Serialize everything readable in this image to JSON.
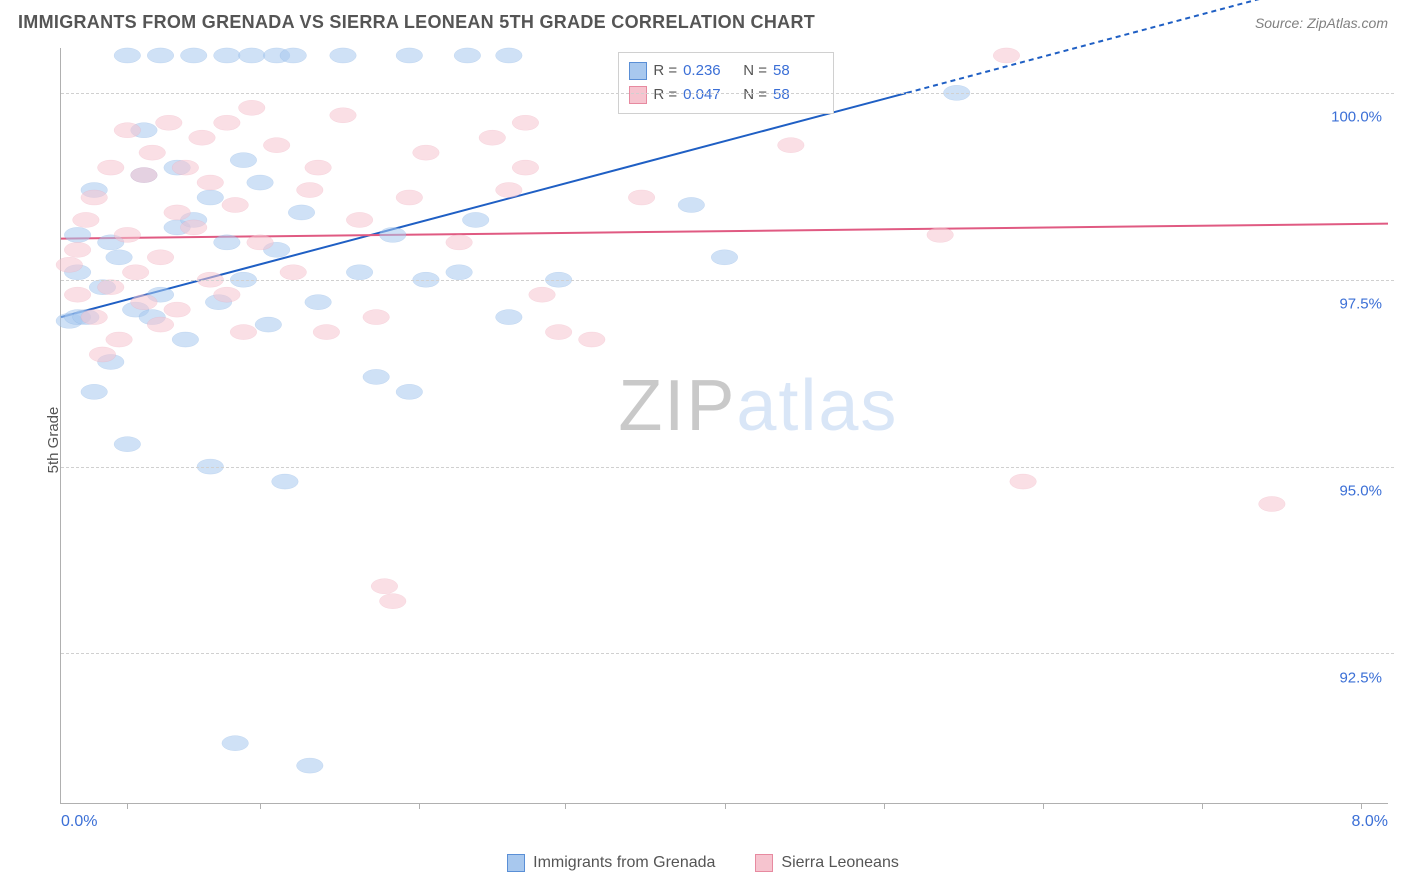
{
  "header": {
    "title": "IMMIGRANTS FROM GRENADA VS SIERRA LEONEAN 5TH GRADE CORRELATION CHART",
    "source_prefix": "Source: ",
    "source_name": "ZipAtlas.com"
  },
  "watermark": {
    "part1": "ZIP",
    "part2": "atlas"
  },
  "legend_stats": {
    "series": [
      {
        "swatch": "#a8c8ee",
        "border": "#5a8fd6",
        "R_label": "R =",
        "R": "0.236",
        "N_label": "N =",
        "N": "58"
      },
      {
        "swatch": "#f6c4cf",
        "border": "#e78aa0",
        "R_label": "R =",
        "R": "0.047",
        "N_label": "N =",
        "N": "58"
      }
    ]
  },
  "bottom_legend": {
    "items": [
      {
        "swatch": "#a8c8ee",
        "border": "#5a8fd6",
        "label": "Immigrants from Grenada"
      },
      {
        "swatch": "#f6c4cf",
        "border": "#e78aa0",
        "label": "Sierra Leoneans"
      }
    ]
  },
  "chart": {
    "type": "scatter",
    "y_axis_label": "5th Grade",
    "xlim": [
      0.0,
      8.0
    ],
    "ylim": [
      90.5,
      100.6
    ],
    "x_range_labels": {
      "min": "0.0%",
      "max": "8.0%"
    },
    "x_ticks_pct": [
      5,
      15,
      27,
      38,
      50,
      62,
      74,
      86,
      98
    ],
    "y_gridlines": [
      {
        "value": 100.0,
        "label": "100.0%"
      },
      {
        "value": 97.5,
        "label": "97.5%"
      },
      {
        "value": 95.0,
        "label": "95.0%"
      },
      {
        "value": 92.5,
        "label": "92.5%"
      }
    ],
    "marker_radius": 9,
    "marker_opacity": 0.55,
    "background_color": "#ffffff",
    "grid_color": "#d0d0d0",
    "series": [
      {
        "name": "Immigrants from Grenada",
        "fill": "#a8c8ee",
        "stroke": "#5a8fd6",
        "line_color": "#1f5fc4",
        "line": {
          "x1": 0.0,
          "y1": 97.0,
          "x2": 5.1,
          "y2": 100.0,
          "dash_after_x": 5.1,
          "dash_x2": 7.3,
          "dash_y2": 101.3
        },
        "points": [
          [
            0.05,
            96.95
          ],
          [
            0.1,
            97.0
          ],
          [
            0.1,
            97.6
          ],
          [
            0.1,
            98.1
          ],
          [
            0.15,
            97.0
          ],
          [
            0.2,
            96.0
          ],
          [
            0.2,
            98.7
          ],
          [
            0.25,
            97.4
          ],
          [
            0.3,
            98.0
          ],
          [
            0.3,
            96.4
          ],
          [
            0.35,
            97.8
          ],
          [
            0.4,
            95.3
          ],
          [
            0.4,
            100.5
          ],
          [
            0.45,
            97.1
          ],
          [
            0.5,
            98.9
          ],
          [
            0.5,
            99.5
          ],
          [
            0.55,
            97.0
          ],
          [
            0.6,
            100.5
          ],
          [
            0.6,
            97.3
          ],
          [
            0.7,
            98.2
          ],
          [
            0.7,
            99.0
          ],
          [
            0.75,
            96.7
          ],
          [
            0.8,
            100.5
          ],
          [
            0.8,
            98.3
          ],
          [
            0.9,
            95.0
          ],
          [
            0.9,
            98.6
          ],
          [
            0.95,
            97.2
          ],
          [
            1.0,
            100.5
          ],
          [
            1.0,
            98.0
          ],
          [
            1.05,
            91.3
          ],
          [
            1.1,
            97.5
          ],
          [
            1.1,
            99.1
          ],
          [
            1.15,
            100.5
          ],
          [
            1.2,
            98.8
          ],
          [
            1.25,
            96.9
          ],
          [
            1.3,
            100.5
          ],
          [
            1.3,
            97.9
          ],
          [
            1.35,
            94.8
          ],
          [
            1.4,
            100.5
          ],
          [
            1.45,
            98.4
          ],
          [
            1.5,
            91.0
          ],
          [
            1.55,
            97.2
          ],
          [
            1.7,
            100.5
          ],
          [
            1.8,
            97.6
          ],
          [
            1.9,
            96.2
          ],
          [
            2.0,
            98.1
          ],
          [
            2.1,
            96.0
          ],
          [
            2.1,
            100.5
          ],
          [
            2.2,
            97.5
          ],
          [
            2.4,
            97.6
          ],
          [
            2.45,
            100.5
          ],
          [
            2.5,
            98.3
          ],
          [
            2.7,
            97.0
          ],
          [
            2.7,
            100.5
          ],
          [
            3.0,
            97.5
          ],
          [
            3.8,
            98.5
          ],
          [
            4.0,
            97.8
          ],
          [
            5.4,
            100.0
          ]
        ]
      },
      {
        "name": "Sierra Leoneans",
        "fill": "#f6c4cf",
        "stroke": "#e78aa0",
        "line_color": "#e05a82",
        "line": {
          "x1": 0.0,
          "y1": 98.05,
          "x2": 8.0,
          "y2": 98.25
        },
        "points": [
          [
            0.05,
            97.7
          ],
          [
            0.1,
            97.3
          ],
          [
            0.1,
            97.9
          ],
          [
            0.15,
            98.3
          ],
          [
            0.2,
            97.0
          ],
          [
            0.2,
            98.6
          ],
          [
            0.25,
            96.5
          ],
          [
            0.3,
            99.0
          ],
          [
            0.3,
            97.4
          ],
          [
            0.35,
            96.7
          ],
          [
            0.4,
            98.1
          ],
          [
            0.4,
            99.5
          ],
          [
            0.45,
            97.6
          ],
          [
            0.5,
            98.9
          ],
          [
            0.5,
            97.2
          ],
          [
            0.55,
            99.2
          ],
          [
            0.6,
            97.8
          ],
          [
            0.6,
            96.9
          ],
          [
            0.65,
            99.6
          ],
          [
            0.7,
            98.4
          ],
          [
            0.7,
            97.1
          ],
          [
            0.75,
            99.0
          ],
          [
            0.8,
            98.2
          ],
          [
            0.85,
            99.4
          ],
          [
            0.9,
            97.5
          ],
          [
            0.9,
            98.8
          ],
          [
            1.0,
            99.6
          ],
          [
            1.0,
            97.3
          ],
          [
            1.05,
            98.5
          ],
          [
            1.1,
            96.8
          ],
          [
            1.15,
            99.8
          ],
          [
            1.2,
            98.0
          ],
          [
            1.3,
            99.3
          ],
          [
            1.4,
            97.6
          ],
          [
            1.5,
            98.7
          ],
          [
            1.55,
            99.0
          ],
          [
            1.6,
            96.8
          ],
          [
            1.7,
            99.7
          ],
          [
            1.8,
            98.3
          ],
          [
            1.9,
            97.0
          ],
          [
            1.95,
            93.4
          ],
          [
            2.0,
            93.2
          ],
          [
            2.1,
            98.6
          ],
          [
            2.2,
            99.2
          ],
          [
            2.4,
            98.0
          ],
          [
            2.6,
            99.4
          ],
          [
            2.7,
            98.7
          ],
          [
            2.8,
            99.6
          ],
          [
            2.8,
            99.0
          ],
          [
            2.9,
            97.3
          ],
          [
            3.0,
            96.8
          ],
          [
            3.2,
            96.7
          ],
          [
            3.5,
            98.6
          ],
          [
            4.4,
            99.3
          ],
          [
            5.3,
            98.1
          ],
          [
            5.7,
            100.5
          ],
          [
            5.8,
            94.8
          ],
          [
            7.3,
            94.5
          ]
        ]
      }
    ]
  }
}
